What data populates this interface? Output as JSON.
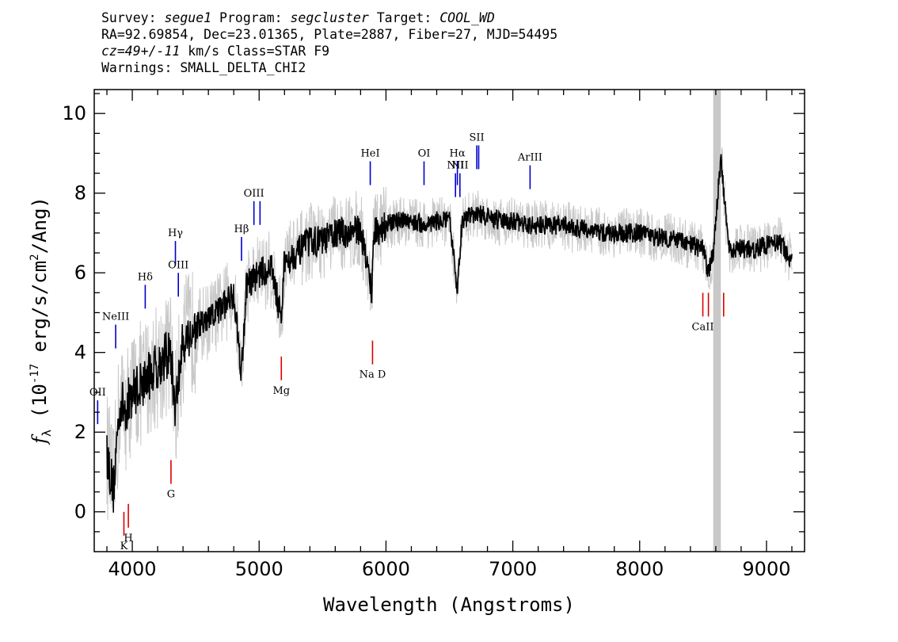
{
  "header": {
    "survey_label": "Survey:",
    "survey": "segue1",
    "program_label": "Program:",
    "program": "segcluster",
    "target_label": "Target:",
    "target": "COOL_WD",
    "line2": "RA=92.69854, Dec=23.01365, Plate=2887, Fiber=27, MJD=54495",
    "cz": "cz=49+/-11",
    "cz_rest": " km/s Class=STAR F9",
    "warnings": "Warnings: SMALL_DELTA_CHI2"
  },
  "chart_data": {
    "type": "line",
    "xlabel": "Wavelength (Angstroms)",
    "ylabel_parts": {
      "f": "f",
      "sub": "λ",
      "open": " (10",
      "exp": "-17",
      "mid": " erg/s/cm",
      "exp2": "2",
      "end": "/Ang)"
    },
    "xlim": [
      3700,
      9300
    ],
    "ylim": [
      -1.0,
      10.6
    ],
    "xticks": [
      4000,
      5000,
      6000,
      7000,
      8000,
      9000
    ],
    "yticks": [
      0,
      2,
      4,
      6,
      8,
      10
    ],
    "xtick_labels": [
      "4000",
      "5000",
      "6000",
      "7000",
      "8000",
      "9000"
    ],
    "ytick_labels": [
      "0",
      "2",
      "4",
      "6",
      "8",
      "10"
    ],
    "masked_band": [
      8580,
      8640
    ],
    "colors": {
      "flux": "#000000",
      "error": "#c8c8c8",
      "emission": "#0000cc",
      "absorption": "#dd0000",
      "mask": "#c8c8c8"
    },
    "series": [
      {
        "role": "flux",
        "x": [
          3800,
          3850,
          3900,
          3950,
          4000,
          4100,
          4200,
          4300,
          4340,
          4400,
          4500,
          4600,
          4700,
          4800,
          4861,
          4900,
          5000,
          5100,
          5175,
          5200,
          5300,
          5400,
          5500,
          5600,
          5700,
          5800,
          5890,
          5900,
          6000,
          6100,
          6200,
          6300,
          6400,
          6500,
          6563,
          6600,
          6700,
          6800,
          6900,
          7000,
          7100,
          7200,
          7300,
          7400,
          7500,
          7600,
          7700,
          7800,
          7900,
          8000,
          8100,
          8200,
          8300,
          8400,
          8500,
          8540,
          8580,
          8640,
          8700,
          8800,
          8900,
          9000,
          9100,
          9200
        ],
        "y": [
          1.5,
          0.5,
          2.7,
          2.6,
          3.0,
          3.3,
          3.7,
          4.0,
          2.6,
          4.3,
          4.6,
          4.8,
          5.1,
          5.5,
          3.5,
          5.7,
          6.0,
          6.1,
          4.8,
          6.3,
          6.5,
          6.8,
          6.8,
          7.0,
          7.0,
          7.1,
          5.5,
          7.0,
          7.2,
          7.3,
          7.3,
          7.2,
          7.3,
          7.3,
          5.6,
          7.3,
          7.5,
          7.4,
          7.3,
          7.3,
          7.2,
          7.2,
          7.2,
          7.2,
          7.1,
          7.1,
          7.0,
          7.0,
          7.0,
          7.0,
          6.9,
          6.9,
          6.8,
          6.7,
          6.6,
          6.0,
          6.5,
          8.9,
          6.6,
          6.6,
          6.6,
          6.7,
          6.8,
          6.3
        ]
      }
    ],
    "emission_lines": [
      {
        "label": "OII",
        "x": 3727,
        "y": 2.5
      },
      {
        "label": "NeIII",
        "x": 3869,
        "y": 4.4
      },
      {
        "label": "Hδ",
        "x": 4102,
        "y": 5.4
      },
      {
        "label": "Hγ",
        "x": 4340,
        "y": 6.5
      },
      {
        "label": "OIII",
        "x": 4363,
        "y": 5.7
      },
      {
        "label": "Hβ",
        "x": 4861,
        "y": 6.6
      },
      {
        "label": "OIII",
        "x": 4959,
        "y": 7.5
      },
      {
        "label": "OIII",
        "x": 5007,
        "y": 7.5
      },
      {
        "label": "HeI",
        "x": 5876,
        "y": 8.5
      },
      {
        "label": "OI",
        "x": 6300,
        "y": 8.5
      },
      {
        "label": "NII",
        "x": 6548,
        "y": 8.2
      },
      {
        "label": "Hα",
        "x": 6563,
        "y": 8.5
      },
      {
        "label": "NII",
        "x": 6583,
        "y": 8.2
      },
      {
        "label": "SII",
        "x": 6716,
        "y": 8.9
      },
      {
        "label": "SII",
        "x": 6731,
        "y": 8.9
      },
      {
        "label": "ArIII",
        "x": 7136,
        "y": 8.4
      }
    ],
    "emission_label_shown": [
      true,
      true,
      true,
      true,
      true,
      true,
      true,
      false,
      true,
      true,
      true,
      true,
      true,
      true,
      false,
      true
    ],
    "absorption_lines": [
      {
        "label": "K",
        "x": 3934,
        "y": -0.3
      },
      {
        "label": "H",
        "x": 3969,
        "y": -0.1
      },
      {
        "label": "G",
        "x": 4305,
        "y": 1.0
      },
      {
        "label": "Mg",
        "x": 5175,
        "y": 3.6
      },
      {
        "label": "Na D",
        "x": 5894,
        "y": 4.0
      },
      {
        "label": "CaII",
        "x": 8498,
        "y": 5.2
      },
      {
        "label": "CaII",
        "x": 8542,
        "y": 5.2
      },
      {
        "label": "CaII",
        "x": 8662,
        "y": 5.2
      }
    ],
    "absorption_label_shown": [
      true,
      true,
      true,
      true,
      true,
      true,
      false,
      false
    ]
  }
}
